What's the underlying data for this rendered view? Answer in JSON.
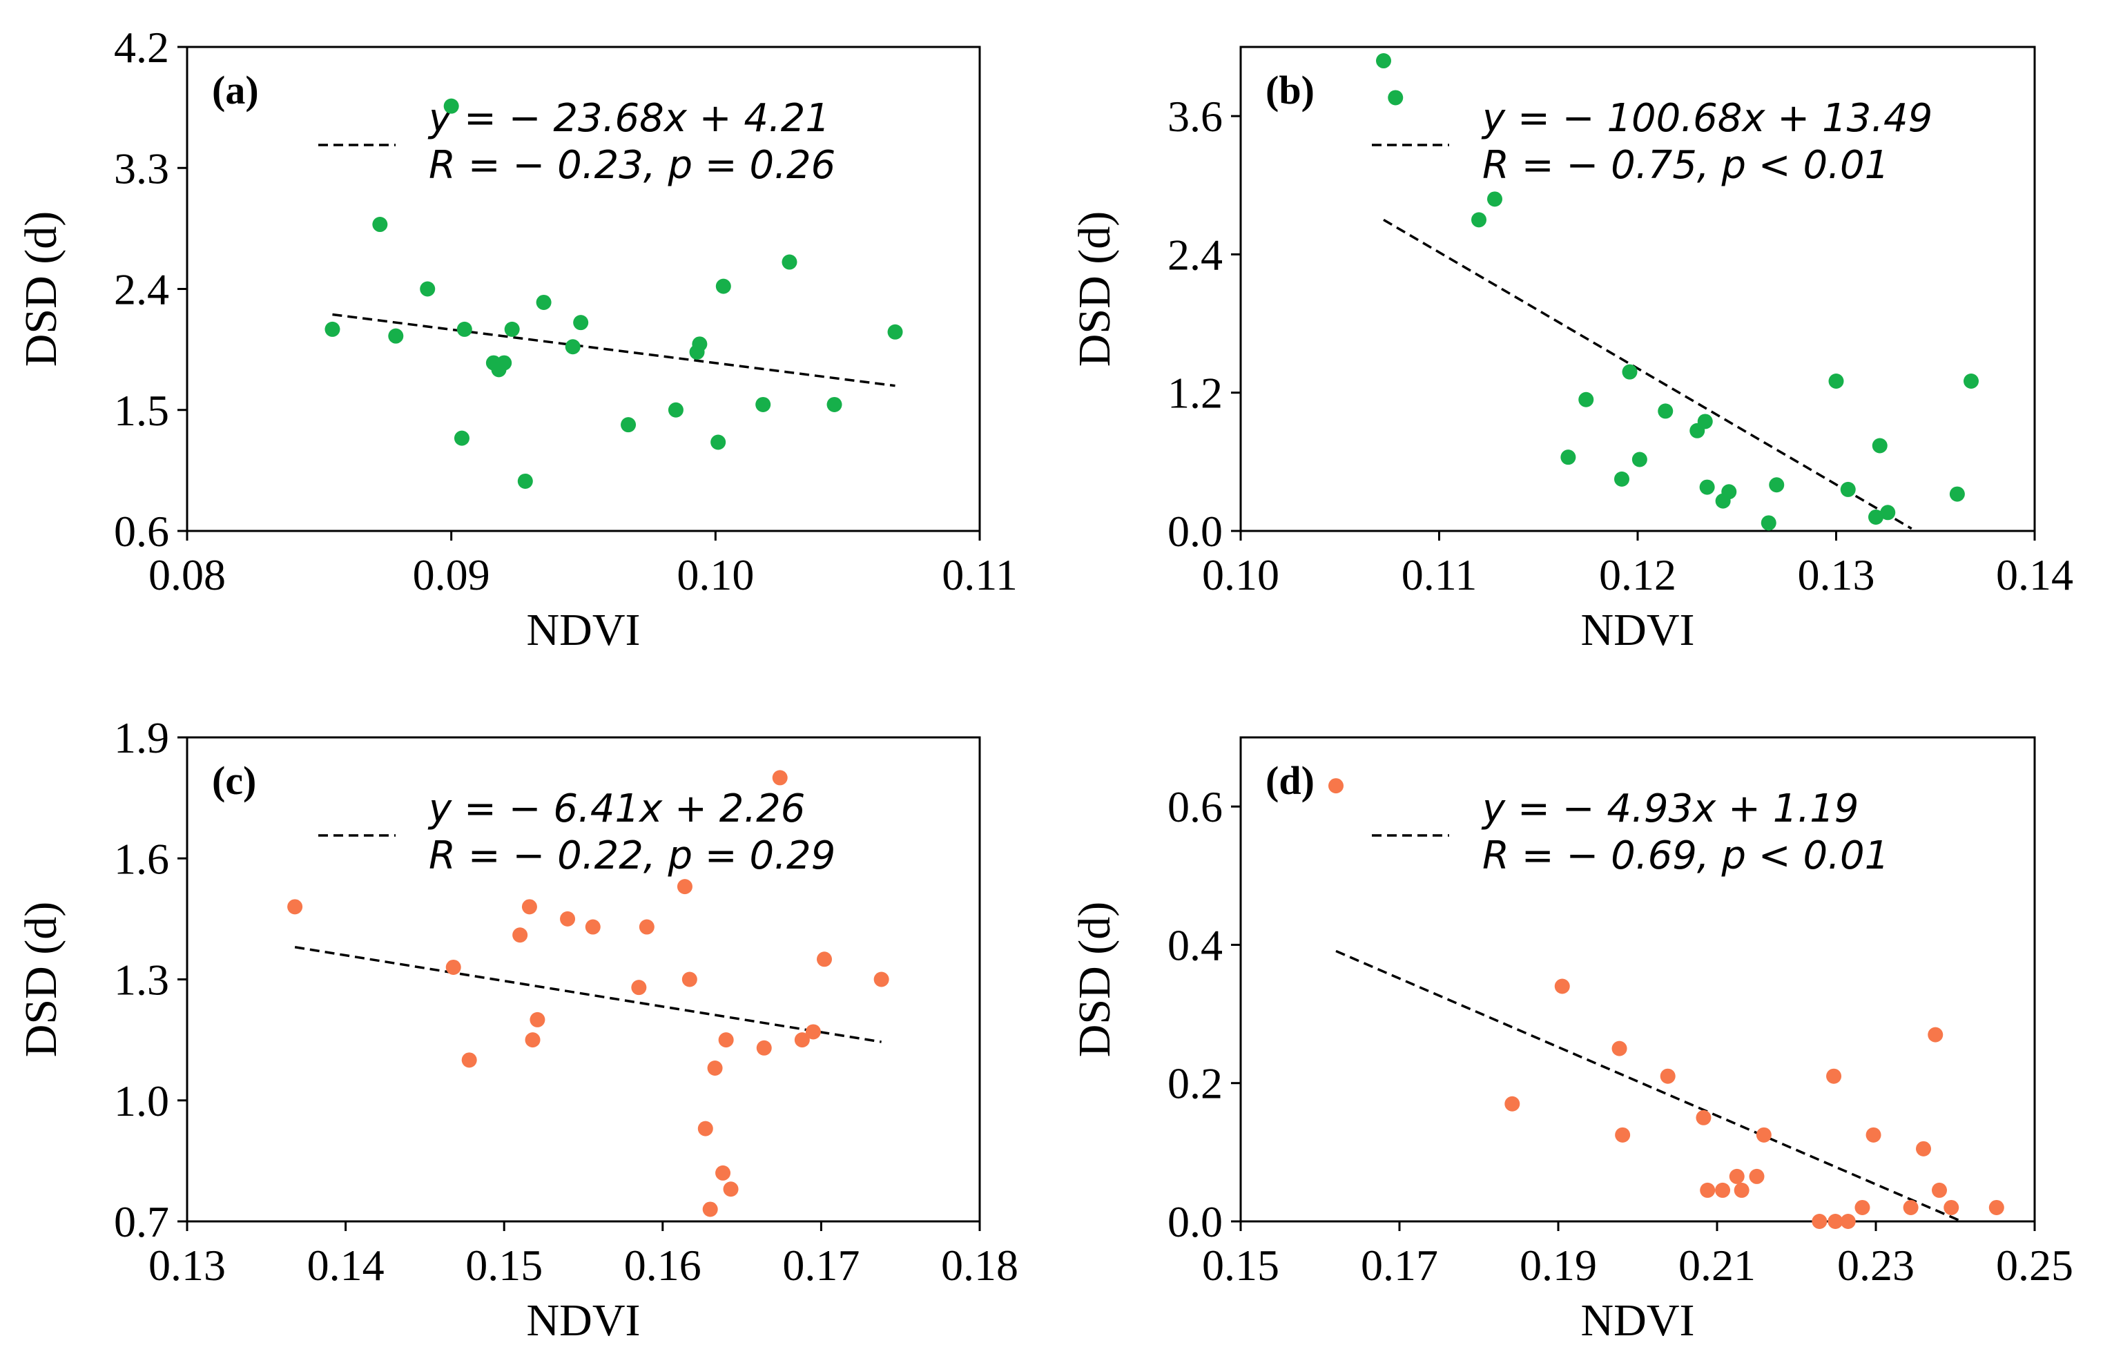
{
  "chart_data": [
    {
      "type": "scatter",
      "panel_label": "(a)",
      "xlabel": "NDVI",
      "ylabel": "DSD (d)",
      "xlim": [
        0.08,
        0.11
      ],
      "ylim": [
        0.6,
        4.2
      ],
      "xticks": [
        "0.08",
        "0.09",
        "0.10",
        "0.11"
      ],
      "yticks": [
        "0.6",
        "1.5",
        "2.4",
        "3.3",
        "4.2"
      ],
      "point_color": "#16b04a",
      "equation": "y = − 23.68x + 4.21",
      "stats": "R = − 0.23,  p = 0.26",
      "fit_x": [
        0.0855,
        0.1068
      ],
      "fit_y": [
        2.21,
        1.68
      ],
      "x": [
        0.0855,
        0.0873,
        0.0879,
        0.0891,
        0.09,
        0.0904,
        0.0905,
        0.0916,
        0.0918,
        0.092,
        0.0923,
        0.0928,
        0.0935,
        0.0946,
        0.0949,
        0.0967,
        0.0985,
        0.0993,
        0.0994,
        0.1001,
        0.1003,
        0.1018,
        0.1028,
        0.1045,
        0.1068
      ],
      "y": [
        2.1,
        2.88,
        2.05,
        2.4,
        3.76,
        1.29,
        2.1,
        1.85,
        1.8,
        1.85,
        2.1,
        0.97,
        2.3,
        1.97,
        2.15,
        1.39,
        1.5,
        1.93,
        1.99,
        1.26,
        2.42,
        1.54,
        2.6,
        1.54,
        2.08
      ]
    },
    {
      "type": "scatter",
      "panel_label": "(b)",
      "xlabel": "NDVI",
      "ylabel": "DSD (d)",
      "xlim": [
        0.1,
        0.14
      ],
      "ylim": [
        0.0,
        4.2
      ],
      "xticks": [
        "0.10",
        "0.11",
        "0.12",
        "0.13",
        "0.14"
      ],
      "yticks": [
        "0.0",
        "1.2",
        "2.4",
        "3.6"
      ],
      "point_color": "#16b04a",
      "equation": "y = − 100.68x + 13.49",
      "stats": "R = − 0.75,  p < 0.01",
      "fit_x": [
        0.1072,
        0.1338
      ],
      "fit_y": [
        2.7,
        0.02
      ],
      "x": [
        0.1072,
        0.1078,
        0.112,
        0.1128,
        0.1165,
        0.1174,
        0.1192,
        0.1196,
        0.1201,
        0.1214,
        0.123,
        0.1234,
        0.1235,
        0.1243,
        0.1246,
        0.1266,
        0.127,
        0.13,
        0.1306,
        0.132,
        0.1322,
        0.1326,
        0.1361,
        0.1368
      ],
      "y": [
        4.08,
        3.76,
        2.7,
        2.88,
        0.64,
        1.14,
        0.45,
        1.38,
        0.62,
        1.04,
        0.87,
        0.95,
        0.38,
        0.26,
        0.34,
        0.07,
        0.4,
        1.3,
        0.36,
        0.12,
        0.74,
        0.16,
        0.32,
        1.3
      ]
    },
    {
      "type": "scatter",
      "panel_label": "(c)",
      "xlabel": "NDVI",
      "ylabel": "DSD (d)",
      "xlim": [
        0.13,
        0.18
      ],
      "ylim": [
        0.7,
        1.9
      ],
      "xticks": [
        "0.13",
        "0.14",
        "0.15",
        "0.16",
        "0.17",
        "0.18"
      ],
      "yticks": [
        "0.7",
        "1.0",
        "1.3",
        "1.6",
        "1.9"
      ],
      "point_color": "#f7774a",
      "equation": "y = − 6.41x + 2.26",
      "stats": "R = − 0.22,  p = 0.29",
      "fit_x": [
        0.1368,
        0.1738
      ],
      "fit_y": [
        1.38,
        1.145
      ],
      "x": [
        0.1368,
        0.1468,
        0.1478,
        0.151,
        0.1516,
        0.1518,
        0.1521,
        0.154,
        0.1556,
        0.1585,
        0.159,
        0.1614,
        0.1617,
        0.1627,
        0.163,
        0.1633,
        0.1638,
        0.164,
        0.1643,
        0.1664,
        0.1674,
        0.1688,
        0.1695,
        0.1702,
        0.1738
      ],
      "y": [
        1.48,
        1.33,
        1.1,
        1.41,
        1.48,
        1.15,
        1.2,
        1.45,
        1.43,
        1.28,
        1.43,
        1.53,
        1.3,
        0.93,
        0.73,
        1.08,
        0.82,
        1.15,
        0.78,
        1.13,
        1.8,
        1.15,
        1.17,
        1.35,
        1.3
      ]
    },
    {
      "type": "scatter",
      "panel_label": "(d)",
      "xlabel": "NDVI",
      "ylabel": "DSD (d)",
      "xlim": [
        0.15,
        0.25
      ],
      "ylim": [
        0.0,
        0.7
      ],
      "xticks": [
        "0.15",
        "0.17",
        "0.19",
        "0.21",
        "0.23",
        "0.25"
      ],
      "yticks": [
        "0.0",
        "0.2",
        "0.4",
        "0.6"
      ],
      "point_color": "#f7774a",
      "equation": "y = − 4.93x + 1.19",
      "stats": "R = − 0.69,  p < 0.01",
      "fit_x": [
        0.162,
        0.2408
      ],
      "fit_y": [
        0.391,
        0.0
      ],
      "x": [
        0.162,
        0.1842,
        0.1905,
        0.1977,
        0.1981,
        0.2038,
        0.2083,
        0.2088,
        0.2107,
        0.2125,
        0.2131,
        0.215,
        0.2159,
        0.2229,
        0.2247,
        0.2249,
        0.2265,
        0.2283,
        0.2297,
        0.2344,
        0.236,
        0.2375,
        0.238,
        0.2395,
        0.2452
      ],
      "y": [
        0.63,
        0.17,
        0.34,
        0.25,
        0.125,
        0.21,
        0.15,
        0.045,
        0.045,
        0.065,
        0.045,
        0.065,
        0.125,
        0.0,
        0.21,
        0.0,
        0.0,
        0.02,
        0.125,
        0.02,
        0.105,
        0.27,
        0.045,
        0.02,
        0.02
      ]
    }
  ]
}
